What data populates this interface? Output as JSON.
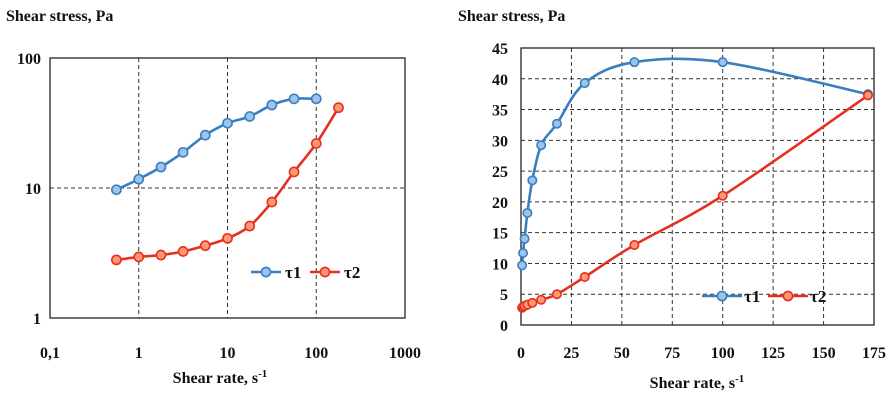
{
  "chart_data": [
    {
      "type": "line",
      "title": "Shear stress, Pa",
      "xlabel": "Shear rate, s",
      "xlabel_sup": "-1",
      "xscale": "log",
      "yscale": "log",
      "xlim": [
        0.1,
        1000
      ],
      "ylim": [
        1,
        100
      ],
      "xticks": [
        "0,1",
        "1",
        "10",
        "100",
        "1000"
      ],
      "yticks": [
        "1",
        "10",
        "100"
      ],
      "grid": true,
      "legend_position": "bottom-right",
      "series": [
        {
          "name": "τ1",
          "color": "#3a7ebf",
          "x": [
            0.56,
            1,
            1.78,
            3.16,
            5.62,
            10,
            17.8,
            31.6,
            56.2,
            100
          ],
          "y": [
            9.7,
            11.7,
            14.5,
            18.8,
            25.5,
            31.5,
            35.5,
            43.5,
            48.5,
            48.5
          ]
        },
        {
          "name": "τ2",
          "color": "#e53020",
          "x": [
            0.56,
            1,
            1.78,
            3.16,
            5.62,
            10,
            17.8,
            31.6,
            56.2,
            100,
            178
          ],
          "y": [
            2.8,
            2.95,
            3.05,
            3.25,
            3.6,
            4.1,
            5.1,
            7.8,
            13.3,
            22,
            41.5
          ]
        }
      ]
    },
    {
      "type": "line",
      "title": "Shear stress, Pa",
      "xlabel": "Shear rate, s",
      "xlabel_sup": "-1",
      "xlim": [
        0,
        175
      ],
      "ylim": [
        0,
        45
      ],
      "xticks": [
        "0",
        "25",
        "50",
        "75",
        "100",
        "125",
        "150",
        "175"
      ],
      "yticks": [
        "0",
        "5",
        "10",
        "15",
        "20",
        "25",
        "30",
        "35",
        "40",
        "45"
      ],
      "grid": true,
      "legend_position": "bottom-right",
      "series": [
        {
          "name": "τ1",
          "color": "#3a7ebf",
          "x": [
            0.56,
            1,
            1.78,
            3.16,
            5.62,
            10,
            17.8,
            31.6,
            56.2,
            100,
            172
          ],
          "y": [
            9.7,
            11.7,
            14.0,
            18.2,
            23.5,
            29.2,
            32.7,
            39.3,
            42.7,
            42.7,
            37.5
          ]
        },
        {
          "name": "τ2",
          "color": "#e53020",
          "x": [
            0.56,
            1,
            1.78,
            3.16,
            5.62,
            10,
            17.8,
            31.6,
            56.2,
            100,
            172
          ],
          "y": [
            2.8,
            2.95,
            3.1,
            3.3,
            3.6,
            4.1,
            5.0,
            7.8,
            13.0,
            21.0,
            37.3
          ]
        }
      ]
    }
  ]
}
